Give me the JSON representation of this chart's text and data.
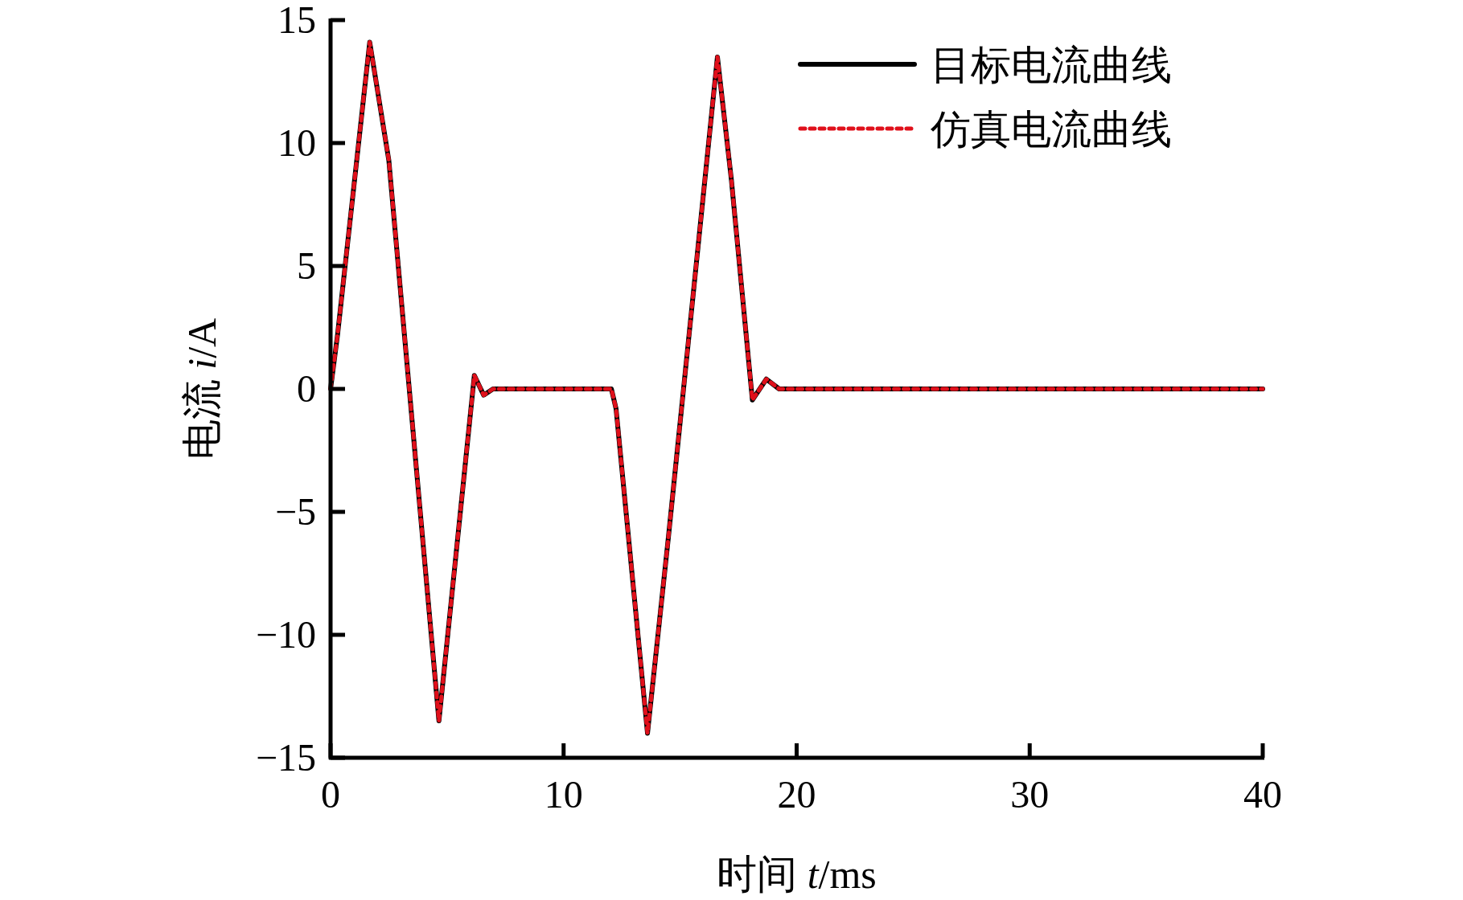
{
  "chart_data": {
    "type": "line",
    "xlabel": "时间 *t*/ms",
    "ylabel": "电流 *i*/A",
    "xlim": [
      0,
      40
    ],
    "ylim": [
      -15,
      15
    ],
    "xticks": [
      0,
      10,
      20,
      30,
      40
    ],
    "yticks": [
      -15,
      -10,
      -5,
      0,
      5,
      10,
      15
    ],
    "x": [
      0,
      0.3,
      1.68,
      2.5,
      4.65,
      5.3,
      6.17,
      6.57,
      6.97,
      12.05,
      12.25,
      13.6,
      14.5,
      16.6,
      17.2,
      18.1,
      18.7,
      19.25,
      40
    ],
    "legend": "top right",
    "grid": false,
    "series": [
      {
        "name": "目标电流曲线",
        "color": "#000000",
        "line_style": "solid",
        "values": [
          0,
          2.2,
          14.1,
          9.3,
          -13.5,
          -7.5,
          0.55,
          -0.25,
          0,
          0,
          -0.8,
          -14.0,
          -6.0,
          13.5,
          8.5,
          -0.45,
          0.4,
          0,
          0
        ]
      },
      {
        "name": "仿真电流曲线",
        "color": "#e0101b",
        "line_style": "dotted",
        "values": [
          0,
          2.2,
          14.1,
          9.3,
          -13.5,
          -7.5,
          0.55,
          -0.25,
          0,
          0,
          -0.8,
          -14.0,
          -6.0,
          13.5,
          8.5,
          -0.45,
          0.4,
          0,
          0
        ]
      }
    ]
  }
}
